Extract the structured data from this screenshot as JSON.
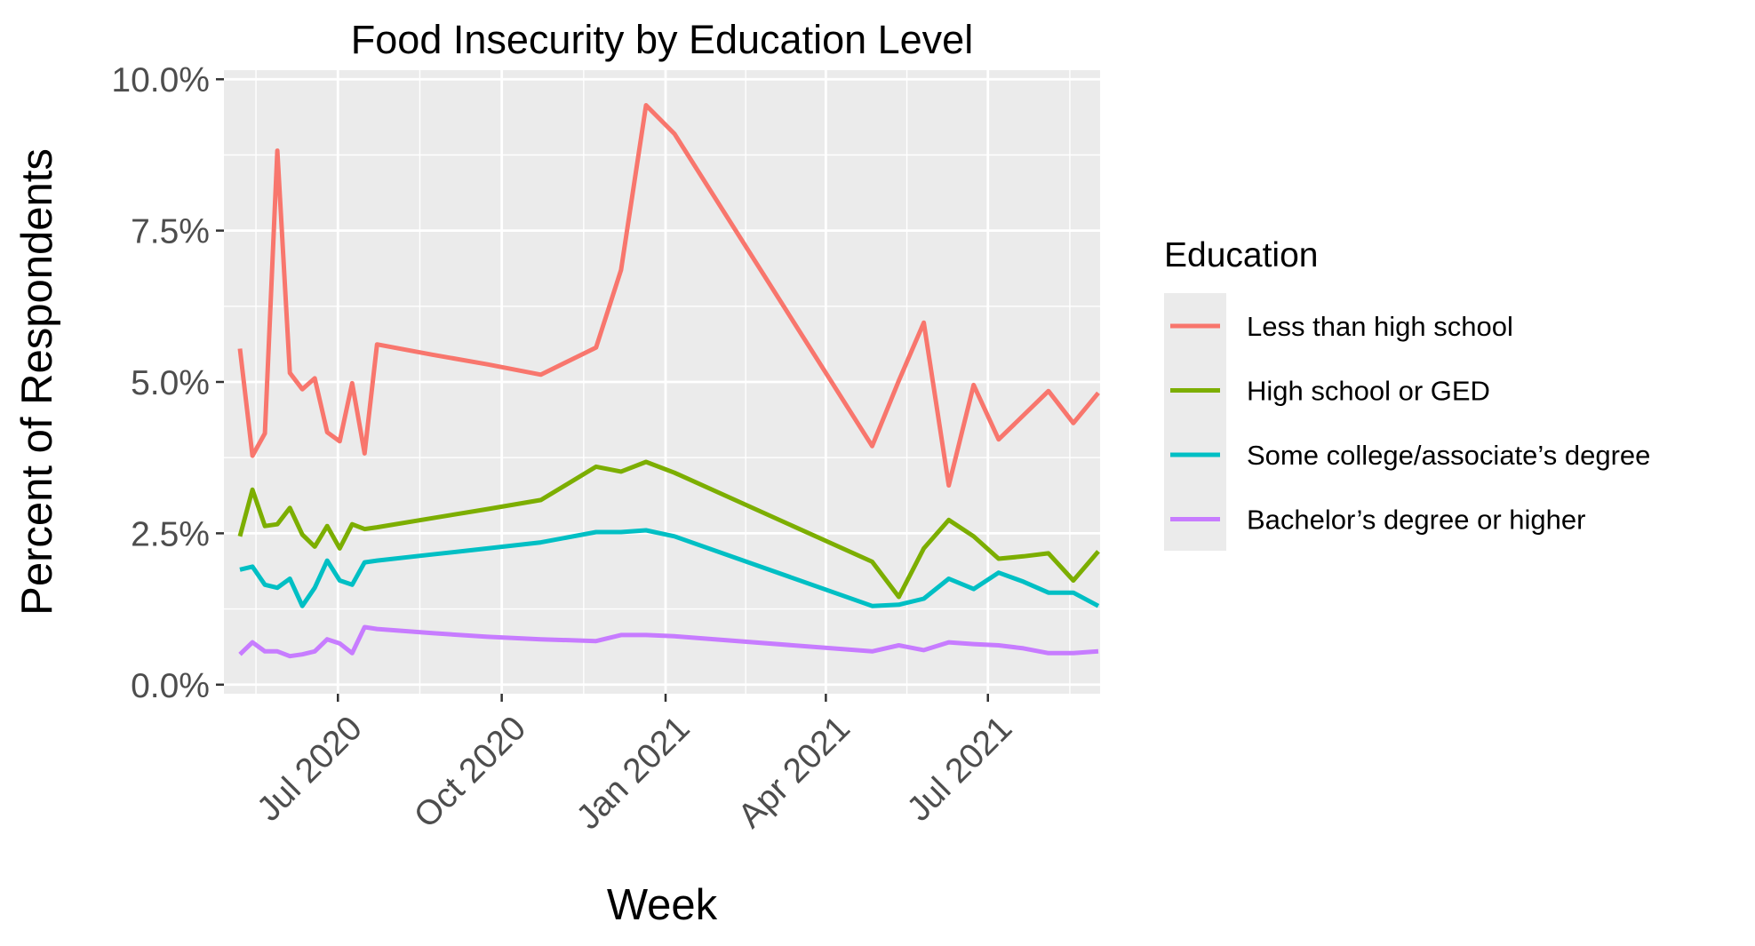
{
  "chart_data": {
    "type": "line",
    "title": "Food Insecurity by Education Level",
    "xlabel": "Week",
    "ylabel": "Percent of Respondents",
    "x_ticks": [
      {
        "date": "2020-07-01",
        "label": "Jul 2020"
      },
      {
        "date": "2020-10-01",
        "label": "Oct 2020"
      },
      {
        "date": "2021-01-01",
        "label": "Jan 2021"
      },
      {
        "date": "2021-04-01",
        "label": "Apr 2021"
      },
      {
        "date": "2021-07-01",
        "label": "Jul 2021"
      }
    ],
    "xlim": [
      "2020-04-28",
      "2021-09-02"
    ],
    "y_ticks": [
      {
        "value": 0,
        "label": "0.0%"
      },
      {
        "value": 2.5,
        "label": "2.5%"
      },
      {
        "value": 5,
        "label": "5.0%"
      },
      {
        "value": 7.5,
        "label": "7.5%"
      },
      {
        "value": 10,
        "label": "10.0%"
      }
    ],
    "ylim": [
      -0.15,
      10.15
    ],
    "grid": true,
    "legend": {
      "title": "Education",
      "position": "right"
    },
    "x": [
      "2020-05-07",
      "2020-05-14",
      "2020-05-21",
      "2020-05-28",
      "2020-06-04",
      "2020-06-11",
      "2020-06-18",
      "2020-06-25",
      "2020-07-02",
      "2020-07-09",
      "2020-07-16",
      "2020-07-23",
      "2020-08-23",
      "2020-09-23",
      "2020-10-23",
      "2020-11-23",
      "2020-12-07",
      "2020-12-21",
      "2021-01-06",
      "2021-04-27",
      "2021-05-12",
      "2021-05-26",
      "2021-06-09",
      "2021-06-23",
      "2021-07-07",
      "2021-07-21",
      "2021-08-04",
      "2021-08-18",
      "2021-09-01"
    ],
    "series": [
      {
        "name": "Less than high school",
        "color": "#F8766D",
        "values": [
          5.55,
          3.78,
          4.15,
          8.82,
          5.15,
          4.88,
          5.06,
          4.17,
          4.02,
          4.98,
          3.82,
          5.62,
          5.45,
          5.29,
          5.12,
          5.57,
          6.85,
          9.57,
          9.1,
          3.94,
          5.02,
          5.98,
          3.29,
          4.95,
          4.05,
          4.45,
          4.85,
          4.32,
          4.82
        ]
      },
      {
        "name": "High school or GED",
        "color": "#7CAE00",
        "values": [
          2.45,
          3.22,
          2.62,
          2.65,
          2.92,
          2.48,
          2.28,
          2.62,
          2.25,
          2.65,
          2.57,
          2.6,
          2.75,
          2.9,
          3.05,
          3.6,
          3.52,
          3.68,
          3.5,
          2.03,
          1.45,
          2.25,
          2.72,
          2.45,
          2.08,
          2.12,
          2.17,
          1.72,
          2.2
        ]
      },
      {
        "name": "Some college/associate’s degree",
        "color": "#00BFC4",
        "values": [
          1.9,
          1.95,
          1.65,
          1.6,
          1.75,
          1.3,
          1.6,
          2.05,
          1.72,
          1.65,
          2.02,
          2.05,
          2.15,
          2.25,
          2.35,
          2.52,
          2.52,
          2.55,
          2.45,
          1.3,
          1.32,
          1.42,
          1.75,
          1.58,
          1.85,
          1.7,
          1.52,
          1.52,
          1.3
        ]
      },
      {
        "name": "Bachelor’s degree or higher",
        "color": "#C77CFF",
        "values": [
          0.5,
          0.7,
          0.55,
          0.55,
          0.47,
          0.5,
          0.55,
          0.75,
          0.68,
          0.52,
          0.95,
          0.92,
          0.85,
          0.79,
          0.75,
          0.72,
          0.82,
          0.82,
          0.8,
          0.55,
          0.65,
          0.57,
          0.7,
          0.67,
          0.65,
          0.6,
          0.52,
          0.52,
          0.55
        ]
      }
    ]
  }
}
